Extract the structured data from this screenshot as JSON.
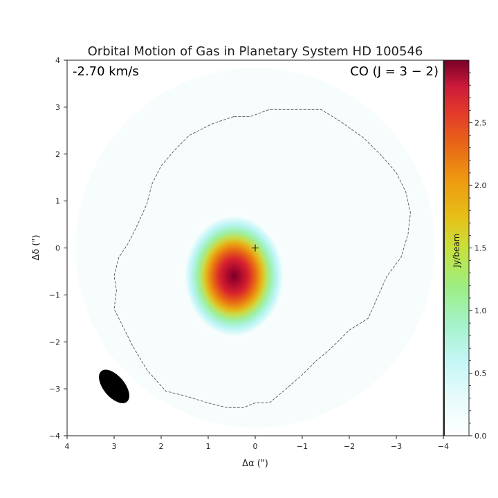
{
  "chart_data": {
    "type": "heatmap",
    "title": "Orbital Motion of Gas in Planetary System HD 100546",
    "xlabel": "Δα (\")",
    "ylabel": "Δδ (\")",
    "xlim": [
      4,
      -4
    ],
    "ylim": [
      -4,
      4
    ],
    "x_ticks": [
      4,
      3,
      2,
      1,
      0,
      -1,
      -2,
      -3,
      -4
    ],
    "y_ticks": [
      -4,
      -3,
      -2,
      -1,
      0,
      1,
      2,
      3,
      4
    ],
    "x_tick_labels": [
      "4",
      "3",
      "2",
      "1",
      "0",
      "−1",
      "−2",
      "−3",
      "−4"
    ],
    "y_tick_labels": [
      "−4",
      "−3",
      "−2",
      "−1",
      "0",
      "1",
      "2",
      "3",
      "4"
    ],
    "velocity_label": "-2.70 km/s",
    "line_label": "CO (J = 3 − 2)",
    "emission_peak": {
      "x": 0.45,
      "y": -0.6,
      "value": 3.0,
      "sigma_x": 0.45,
      "sigma_y": 0.55
    },
    "star_marker": {
      "x": 0,
      "y": 0,
      "symbol": "+"
    },
    "beam": {
      "x": 3.0,
      "y": -2.95,
      "major": 0.85,
      "minor": 0.45,
      "angle_deg": 40
    },
    "outer_contour": [
      [
        0.45,
        2.8
      ],
      [
        0.1,
        2.8
      ],
      [
        -0.3,
        2.95
      ],
      [
        -0.9,
        2.95
      ],
      [
        -1.4,
        2.95
      ],
      [
        -1.8,
        2.7
      ],
      [
        -2.3,
        2.35
      ],
      [
        -2.7,
        1.95
      ],
      [
        -3.0,
        1.6
      ],
      [
        -3.2,
        1.2
      ],
      [
        -3.3,
        0.75
      ],
      [
        -3.25,
        0.3
      ],
      [
        -3.1,
        -0.2
      ],
      [
        -2.8,
        -0.6
      ],
      [
        -2.6,
        -1.05
      ],
      [
        -2.4,
        -1.5
      ],
      [
        -2.0,
        -1.75
      ],
      [
        -1.6,
        -2.15
      ],
      [
        -1.3,
        -2.4
      ],
      [
        -1.0,
        -2.7
      ],
      [
        -0.6,
        -3.05
      ],
      [
        -0.3,
        -3.3
      ],
      [
        0.0,
        -3.3
      ],
      [
        0.25,
        -3.4
      ],
      [
        0.6,
        -3.4
      ],
      [
        1.0,
        -3.3
      ],
      [
        1.5,
        -3.15
      ],
      [
        1.9,
        -3.05
      ],
      [
        2.3,
        -2.6
      ],
      [
        2.6,
        -2.1
      ],
      [
        2.8,
        -1.7
      ],
      [
        3.0,
        -1.3
      ],
      [
        2.95,
        -0.9
      ],
      [
        3.0,
        -0.6
      ],
      [
        2.9,
        -0.2
      ],
      [
        2.7,
        0.1
      ],
      [
        2.5,
        0.5
      ],
      [
        2.3,
        0.95
      ],
      [
        2.2,
        1.35
      ],
      [
        2.0,
        1.75
      ],
      [
        1.7,
        2.1
      ],
      [
        1.4,
        2.4
      ],
      [
        0.9,
        2.65
      ],
      [
        0.45,
        2.8
      ]
    ],
    "colorbar": {
      "label": "Jy/beam",
      "range": [
        0.0,
        3.0
      ],
      "ticks": [
        0.0,
        0.5,
        1.0,
        1.5,
        2.0,
        2.5
      ],
      "tick_labels": [
        "0.0",
        "0.5",
        "1.0",
        "1.5",
        "2.0",
        "2.5"
      ],
      "colors": [
        "#ffffff",
        "#d8f8f8",
        "#b8f4f4",
        "#a8f0c8",
        "#99ee88",
        "#c8e04a",
        "#e8c020",
        "#ee9a10",
        "#e86a14",
        "#e33a2a",
        "#d01a3a",
        "#7a0028"
      ]
    }
  }
}
